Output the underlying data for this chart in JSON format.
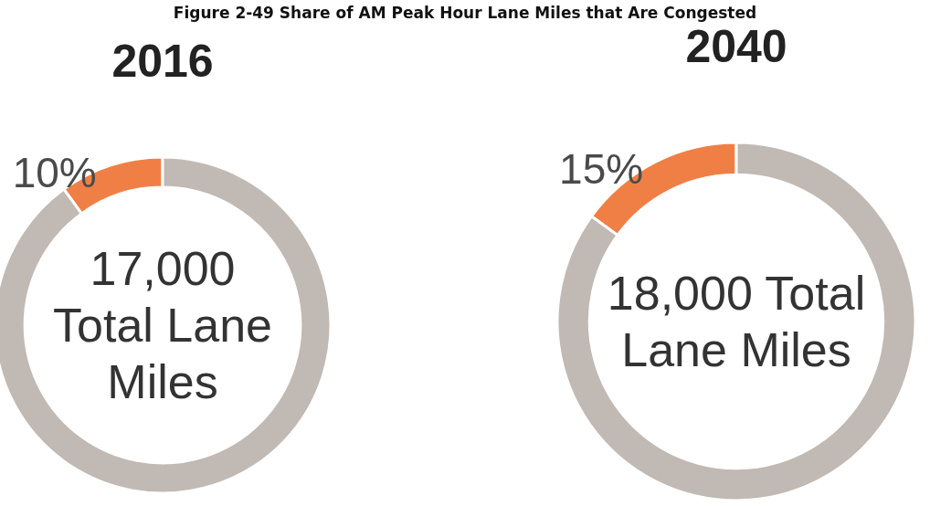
{
  "chart_data": [
    {
      "type": "other",
      "title": "Figure 2-49 Share of AM Peak Hour Lane Miles that Are Congested"
    },
    {
      "type": "donut",
      "title": "2016",
      "categories": [
        null,
        null
      ],
      "values": [
        10,
        90
      ],
      "colors": [
        "#f07f45",
        "#c0b9b4"
      ],
      "value_labels": [
        "10%",
        null
      ],
      "annotations": [
        "17,000 Total Lane Miles"
      ]
    },
    {
      "type": "donut",
      "title": "2040",
      "categories": [
        null,
        null
      ],
      "values": [
        15,
        85
      ],
      "colors": [
        "#f07f45",
        "#c0b9b4"
      ],
      "value_labels": [
        "15%",
        null
      ],
      "annotations": [
        "18,000 Total Lane Miles"
      ]
    }
  ]
}
